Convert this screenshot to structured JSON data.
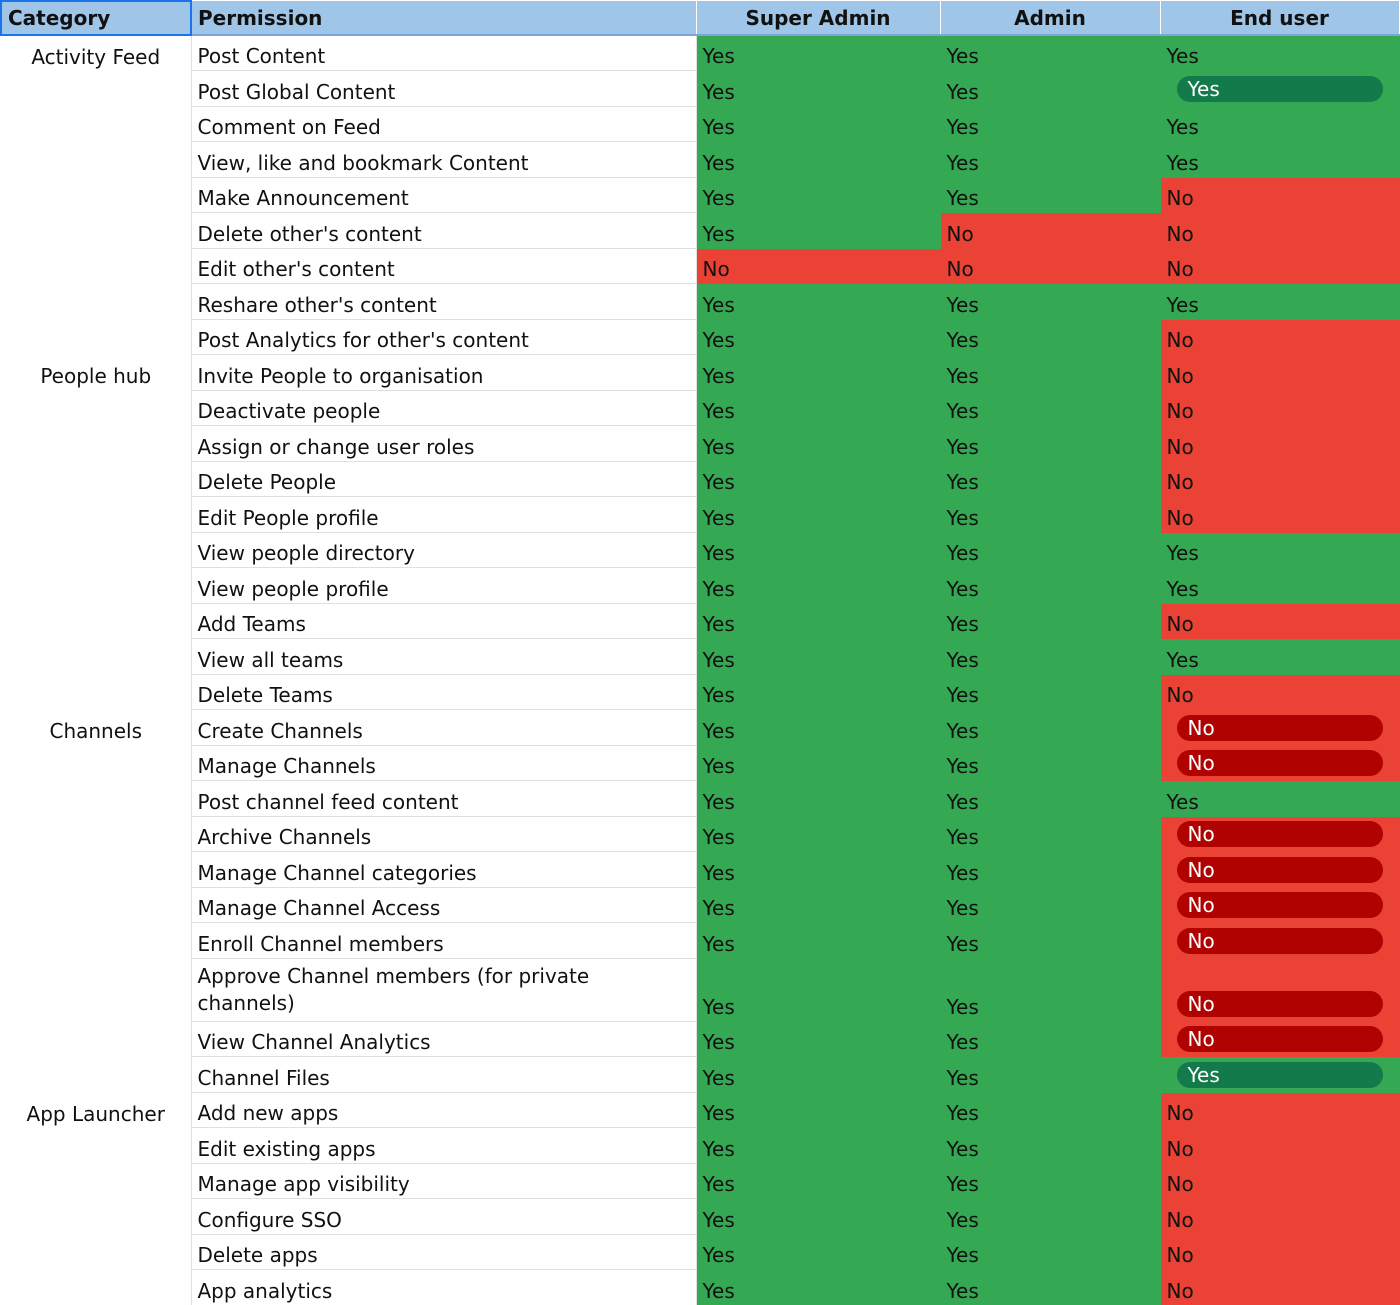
{
  "table": {
    "header": [
      "Category",
      "Permission",
      "Super Admin",
      "Admin",
      "End user"
    ],
    "rows": [
      {
        "category": "Activity Feed",
        "permission": "Post Content",
        "super_admin": "Yes",
        "admin": "Yes",
        "end_user": "Yes"
      },
      {
        "permission": "Post Global Content",
        "super_admin": "Yes",
        "admin": "Yes",
        "end_user": "Yes",
        "chip": true
      },
      {
        "permission": "Comment on Feed",
        "super_admin": "Yes",
        "admin": "Yes",
        "end_user": "Yes"
      },
      {
        "permission": "View, like and bookmark Content",
        "super_admin": "Yes",
        "admin": "Yes",
        "end_user": "Yes"
      },
      {
        "permission": "Make Announcement",
        "super_admin": "Yes",
        "admin": "Yes",
        "end_user": "No"
      },
      {
        "permission": "Delete other's content",
        "super_admin": "Yes",
        "admin": "No",
        "end_user": "No"
      },
      {
        "permission": "Edit other's content",
        "super_admin": "No",
        "admin": "No",
        "end_user": "No"
      },
      {
        "permission": "Reshare other's content",
        "super_admin": "Yes",
        "admin": "Yes",
        "end_user": "Yes"
      },
      {
        "permission": "Post Analytics for other's content",
        "super_admin": "Yes",
        "admin": "Yes",
        "end_user": "No"
      },
      {
        "category": "People hub",
        "permission": "Invite People to organisation",
        "super_admin": "Yes",
        "admin": "Yes",
        "end_user": "No"
      },
      {
        "permission": "Deactivate people",
        "super_admin": "Yes",
        "admin": "Yes",
        "end_user": "No"
      },
      {
        "permission": "Assign or change user roles",
        "super_admin": "Yes",
        "admin": "Yes",
        "end_user": "No"
      },
      {
        "permission": "Delete People",
        "super_admin": "Yes",
        "admin": "Yes",
        "end_user": "No"
      },
      {
        "permission": "Edit People profile",
        "super_admin": "Yes",
        "admin": "Yes",
        "end_user": "No"
      },
      {
        "permission": "View people directory",
        "super_admin": "Yes",
        "admin": "Yes",
        "end_user": "Yes"
      },
      {
        "permission": "View people profile",
        "super_admin": "Yes",
        "admin": "Yes",
        "end_user": "Yes"
      },
      {
        "permission": "Add Teams",
        "super_admin": "Yes",
        "admin": "Yes",
        "end_user": "No"
      },
      {
        "permission": "View all teams",
        "super_admin": "Yes",
        "admin": "Yes",
        "end_user": "Yes"
      },
      {
        "permission": "Delete Teams",
        "super_admin": "Yes",
        "admin": "Yes",
        "end_user": "No"
      },
      {
        "category": "Channels",
        "permission": "Create Channels",
        "super_admin": "Yes",
        "admin": "Yes",
        "end_user": "No",
        "chip": true
      },
      {
        "permission": "Manage Channels",
        "super_admin": "Yes",
        "admin": "Yes",
        "end_user": "No",
        "chip": true
      },
      {
        "permission": "Post channel feed content",
        "super_admin": "Yes",
        "admin": "Yes",
        "end_user": "Yes"
      },
      {
        "permission": "Archive Channels",
        "super_admin": "Yes",
        "admin": "Yes",
        "end_user": "No",
        "chip": true
      },
      {
        "permission": "Manage Channel categories",
        "super_admin": "Yes",
        "admin": "Yes",
        "end_user": "No",
        "chip": true
      },
      {
        "permission": "Manage Channel Access",
        "super_admin": "Yes",
        "admin": "Yes",
        "end_user": "No",
        "chip": true
      },
      {
        "permission": "Enroll Channel members",
        "super_admin": "Yes",
        "admin": "Yes",
        "end_user": "No",
        "chip": true
      },
      {
        "permission": "Approve Channel members (for private channels)",
        "super_admin": "Yes",
        "admin": "Yes",
        "end_user": "No",
        "chip": true
      },
      {
        "permission": "View Channel Analytics",
        "super_admin": "Yes",
        "admin": "Yes",
        "end_user": "No",
        "chip": true
      },
      {
        "permission": "Channel Files",
        "super_admin": "Yes",
        "admin": "Yes",
        "end_user": "Yes",
        "chip": true
      },
      {
        "category": "App Launcher",
        "permission": "Add new apps",
        "super_admin": "Yes",
        "admin": "Yes",
        "end_user": "No"
      },
      {
        "permission": "Edit existing apps",
        "super_admin": "Yes",
        "admin": "Yes",
        "end_user": "No"
      },
      {
        "permission": "Manage app visibility",
        "super_admin": "Yes",
        "admin": "Yes",
        "end_user": "No"
      },
      {
        "permission": "Configure SSO",
        "super_admin": "Yes",
        "admin": "Yes",
        "end_user": "No"
      },
      {
        "permission": "Delete apps",
        "super_admin": "Yes",
        "admin": "Yes",
        "end_user": "No"
      },
      {
        "permission": "App analytics",
        "super_admin": "Yes",
        "admin": "Yes",
        "end_user": "No"
      }
    ]
  }
}
